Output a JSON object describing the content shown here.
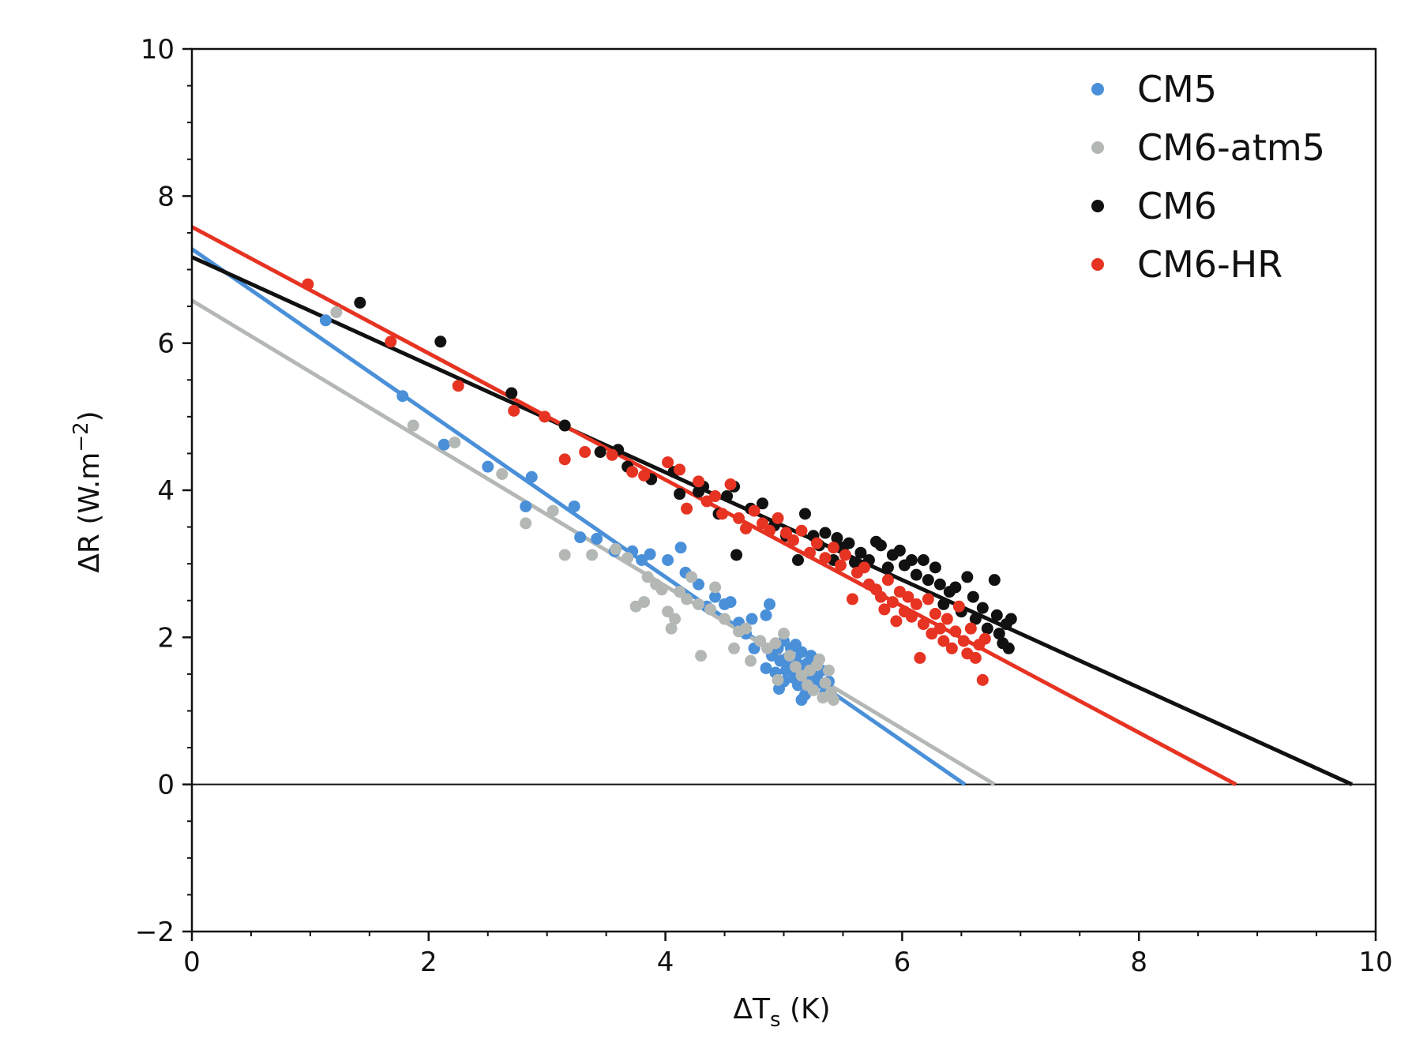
{
  "chart_data": {
    "type": "scatter",
    "xlabel": "ΔTs (K)",
    "xlabel_main": "ΔT",
    "xlabel_sub": "s",
    "xlabel_rest": " (K)",
    "ylabel": "ΔR (W.m−2)",
    "ylabel_main": "ΔR (W.m",
    "ylabel_sup": "−2",
    "ylabel_rest": ")",
    "xlim": [
      0,
      10
    ],
    "ylim": [
      -2,
      10
    ],
    "xticks": [
      0,
      2,
      4,
      6,
      8,
      10
    ],
    "yticks": [
      -2,
      0,
      2,
      4,
      6,
      8,
      10
    ],
    "xtick_labels": [
      "0",
      "2",
      "4",
      "6",
      "8",
      "10"
    ],
    "ytick_labels": [
      "−2",
      "0",
      "2",
      "4",
      "6",
      "8",
      "10"
    ],
    "legend_position": "top-right",
    "grid": false,
    "zero_line": true,
    "series": [
      {
        "name": "CM5",
        "color": "#4a90d9",
        "fit_line": [
          [
            0,
            7.28
          ],
          [
            6.53,
            0
          ]
        ],
        "points": [
          [
            1.13,
            6.31
          ],
          [
            1.78,
            5.28
          ],
          [
            2.13,
            4.62
          ],
          [
            2.5,
            4.32
          ],
          [
            2.82,
            3.78
          ],
          [
            2.87,
            4.18
          ],
          [
            3.23,
            3.78
          ],
          [
            3.28,
            3.36
          ],
          [
            3.42,
            3.34
          ],
          [
            3.57,
            3.17
          ],
          [
            3.72,
            3.17
          ],
          [
            3.8,
            3.05
          ],
          [
            3.87,
            3.13
          ],
          [
            4.02,
            3.05
          ],
          [
            4.13,
            3.22
          ],
          [
            4.17,
            2.88
          ],
          [
            4.28,
            2.72
          ],
          [
            4.35,
            2.42
          ],
          [
            4.42,
            2.55
          ],
          [
            4.5,
            2.45
          ],
          [
            4.55,
            2.48
          ],
          [
            4.62,
            2.2
          ],
          [
            4.68,
            2.05
          ],
          [
            4.73,
            2.25
          ],
          [
            4.8,
            1.95
          ],
          [
            4.85,
            2.3
          ],
          [
            4.88,
            2.45
          ],
          [
            4.9,
            1.75
          ],
          [
            4.93,
            1.52
          ],
          [
            4.95,
            1.85
          ],
          [
            4.97,
            1.68
          ],
          [
            5.0,
            1.95
          ],
          [
            5.02,
            1.55
          ],
          [
            5.03,
            1.72
          ],
          [
            5.05,
            1.6
          ],
          [
            5.06,
            1.85
          ],
          [
            5.08,
            1.45
          ],
          [
            5.1,
            1.7
          ],
          [
            5.12,
            1.35
          ],
          [
            5.13,
            1.62
          ],
          [
            5.15,
            1.8
          ],
          [
            5.17,
            1.5
          ],
          [
            5.18,
            1.22
          ],
          [
            5.2,
            1.65
          ],
          [
            5.22,
            1.4
          ],
          [
            5.24,
            1.55
          ],
          [
            5.25,
            1.3
          ],
          [
            5.27,
            1.6
          ],
          [
            5.28,
            1.45
          ],
          [
            5.3,
            1.38
          ],
          [
            5.32,
            1.55
          ],
          [
            5.35,
            1.25
          ],
          [
            4.96,
            1.3
          ],
          [
            5.0,
            1.4
          ],
          [
            4.85,
            1.58
          ],
          [
            4.75,
            1.85
          ],
          [
            5.15,
            1.15
          ],
          [
            5.23,
            1.75
          ],
          [
            5.38,
            1.4
          ],
          [
            5.1,
            1.9
          ]
        ]
      },
      {
        "name": "CM6-atm5",
        "color": "#b4b8b4",
        "fit_line": [
          [
            0,
            6.58
          ],
          [
            6.78,
            0
          ]
        ],
        "points": [
          [
            1.22,
            6.42
          ],
          [
            1.87,
            4.88
          ],
          [
            2.22,
            4.65
          ],
          [
            2.62,
            4.22
          ],
          [
            2.82,
            3.55
          ],
          [
            3.05,
            3.72
          ],
          [
            3.15,
            3.12
          ],
          [
            3.38,
            3.12
          ],
          [
            3.58,
            3.2
          ],
          [
            3.68,
            3.08
          ],
          [
            3.75,
            2.42
          ],
          [
            3.82,
            2.48
          ],
          [
            3.85,
            2.82
          ],
          [
            3.92,
            2.72
          ],
          [
            3.97,
            2.65
          ],
          [
            4.02,
            2.35
          ],
          [
            4.05,
            2.12
          ],
          [
            4.08,
            2.25
          ],
          [
            4.12,
            2.62
          ],
          [
            4.18,
            2.52
          ],
          [
            4.22,
            2.82
          ],
          [
            4.28,
            2.45
          ],
          [
            4.3,
            1.75
          ],
          [
            4.38,
            2.38
          ],
          [
            4.42,
            2.68
          ],
          [
            4.5,
            2.25
          ],
          [
            4.58,
            1.85
          ],
          [
            4.62,
            2.08
          ],
          [
            4.68,
            2.12
          ],
          [
            4.72,
            1.68
          ],
          [
            4.8,
            1.95
          ],
          [
            4.86,
            1.85
          ],
          [
            4.93,
            1.92
          ],
          [
            5.0,
            2.05
          ],
          [
            5.05,
            1.75
          ],
          [
            5.1,
            1.6
          ],
          [
            5.15,
            1.48
          ],
          [
            5.22,
            1.55
          ],
          [
            5.25,
            1.28
          ],
          [
            5.3,
            1.7
          ],
          [
            5.35,
            1.38
          ],
          [
            5.38,
            1.55
          ],
          [
            5.4,
            1.25
          ],
          [
            5.42,
            1.15
          ],
          [
            5.33,
            1.18
          ],
          [
            5.2,
            1.35
          ],
          [
            4.95,
            1.42
          ],
          [
            5.28,
            1.62
          ]
        ]
      },
      {
        "name": "CM6",
        "color": "#111111",
        "fit_line": [
          [
            0,
            7.17
          ],
          [
            9.8,
            0
          ]
        ],
        "points": [
          [
            1.42,
            6.55
          ],
          [
            2.1,
            6.02
          ],
          [
            2.7,
            5.32
          ],
          [
            3.15,
            4.88
          ],
          [
            3.45,
            4.52
          ],
          [
            3.6,
            4.55
          ],
          [
            3.68,
            4.32
          ],
          [
            3.88,
            4.15
          ],
          [
            4.07,
            4.25
          ],
          [
            4.12,
            3.95
          ],
          [
            4.28,
            3.98
          ],
          [
            4.32,
            4.05
          ],
          [
            4.45,
            3.68
          ],
          [
            4.52,
            3.92
          ],
          [
            4.58,
            4.05
          ],
          [
            4.6,
            3.12
          ],
          [
            4.72,
            3.75
          ],
          [
            4.82,
            3.82
          ],
          [
            4.92,
            3.52
          ],
          [
            5.02,
            3.38
          ],
          [
            5.12,
            3.05
          ],
          [
            5.18,
            3.68
          ],
          [
            5.25,
            3.38
          ],
          [
            5.3,
            3.25
          ],
          [
            5.35,
            3.42
          ],
          [
            5.42,
            3.05
          ],
          [
            5.45,
            3.35
          ],
          [
            5.5,
            3.22
          ],
          [
            5.55,
            3.28
          ],
          [
            5.6,
            3.02
          ],
          [
            5.65,
            3.15
          ],
          [
            5.72,
            3.05
          ],
          [
            5.78,
            3.3
          ],
          [
            5.82,
            3.25
          ],
          [
            5.88,
            2.95
          ],
          [
            5.92,
            3.12
          ],
          [
            5.98,
            3.18
          ],
          [
            6.02,
            2.98
          ],
          [
            6.08,
            3.05
          ],
          [
            6.12,
            2.85
          ],
          [
            6.18,
            3.05
          ],
          [
            6.22,
            2.78
          ],
          [
            6.28,
            2.95
          ],
          [
            6.32,
            2.72
          ],
          [
            6.35,
            2.45
          ],
          [
            6.4,
            2.62
          ],
          [
            6.45,
            2.68
          ],
          [
            6.5,
            2.35
          ],
          [
            6.55,
            2.82
          ],
          [
            6.6,
            2.55
          ],
          [
            6.62,
            2.25
          ],
          [
            6.68,
            2.4
          ],
          [
            6.72,
            2.12
          ],
          [
            6.78,
            2.78
          ],
          [
            6.8,
            2.3
          ],
          [
            6.82,
            2.05
          ],
          [
            6.85,
            1.92
          ],
          [
            6.88,
            2.18
          ],
          [
            6.9,
            1.85
          ],
          [
            6.92,
            2.25
          ]
        ]
      },
      {
        "name": "CM6-HR",
        "color": "#e63322",
        "fit_line": [
          [
            0,
            7.58
          ],
          [
            8.82,
            0
          ]
        ],
        "points": [
          [
            0.98,
            6.8
          ],
          [
            1.68,
            6.02
          ],
          [
            2.25,
            5.42
          ],
          [
            2.72,
            5.08
          ],
          [
            2.98,
            5.0
          ],
          [
            3.15,
            4.42
          ],
          [
            3.32,
            4.52
          ],
          [
            3.55,
            4.48
          ],
          [
            3.72,
            4.25
          ],
          [
            3.82,
            4.2
          ],
          [
            4.02,
            4.38
          ],
          [
            4.12,
            4.28
          ],
          [
            4.18,
            3.75
          ],
          [
            4.28,
            4.12
          ],
          [
            4.35,
            3.85
          ],
          [
            4.42,
            3.92
          ],
          [
            4.48,
            3.68
          ],
          [
            4.55,
            4.08
          ],
          [
            4.62,
            3.62
          ],
          [
            4.68,
            3.48
          ],
          [
            4.75,
            3.72
          ],
          [
            4.82,
            3.55
          ],
          [
            4.88,
            3.45
          ],
          [
            4.95,
            3.62
          ],
          [
            5.02,
            3.42
          ],
          [
            5.08,
            3.32
          ],
          [
            5.15,
            3.45
          ],
          [
            5.22,
            3.15
          ],
          [
            5.28,
            3.28
          ],
          [
            5.35,
            3.08
          ],
          [
            5.42,
            3.22
          ],
          [
            5.48,
            2.98
          ],
          [
            5.52,
            3.12
          ],
          [
            5.58,
            2.52
          ],
          [
            5.62,
            2.88
          ],
          [
            5.68,
            2.95
          ],
          [
            5.72,
            2.72
          ],
          [
            5.78,
            2.65
          ],
          [
            5.82,
            2.55
          ],
          [
            5.85,
            2.38
          ],
          [
            5.88,
            2.78
          ],
          [
            5.92,
            2.48
          ],
          [
            5.95,
            2.22
          ],
          [
            5.98,
            2.62
          ],
          [
            6.02,
            2.35
          ],
          [
            6.05,
            2.55
          ],
          [
            6.08,
            2.28
          ],
          [
            6.12,
            2.45
          ],
          [
            6.15,
            1.72
          ],
          [
            6.18,
            2.18
          ],
          [
            6.22,
            2.52
          ],
          [
            6.25,
            2.05
          ],
          [
            6.28,
            2.32
          ],
          [
            6.32,
            2.12
          ],
          [
            6.35,
            1.95
          ],
          [
            6.38,
            2.25
          ],
          [
            6.42,
            1.85
          ],
          [
            6.45,
            2.08
          ],
          [
            6.48,
            2.42
          ],
          [
            6.52,
            1.95
          ],
          [
            6.55,
            1.78
          ],
          [
            6.58,
            2.12
          ],
          [
            6.62,
            1.72
          ],
          [
            6.65,
            1.9
          ],
          [
            6.68,
            1.42
          ],
          [
            6.7,
            1.98
          ]
        ]
      }
    ]
  }
}
